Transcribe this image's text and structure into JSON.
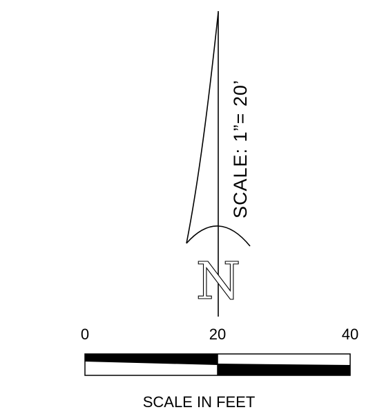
{
  "north_arrow": {
    "letter": "N",
    "icon": "north-arrow-icon"
  },
  "scale_note": "SCALE:  1”=  20’",
  "scale_bar": {
    "ticks": [
      "0",
      "20",
      "40"
    ],
    "caption": "SCALE IN FEET",
    "min_feet": 0,
    "max_feet": 40,
    "mid_feet": 20
  },
  "colors": {
    "ink": "#000000",
    "paper": "#ffffff"
  }
}
